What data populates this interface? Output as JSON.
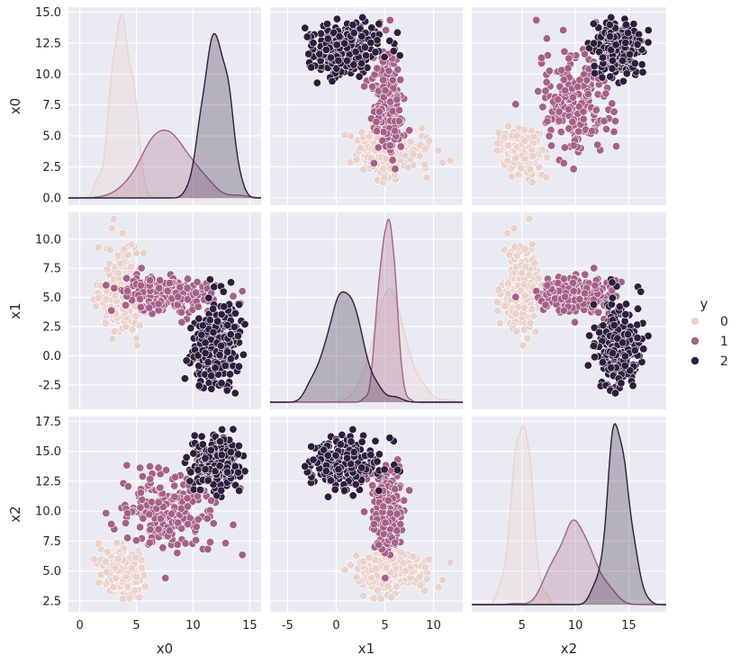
{
  "chart_data": {
    "type": "pairplot",
    "variables": [
      "x0",
      "x1",
      "x2"
    ],
    "hue": {
      "title": "y",
      "classes": [
        "0",
        "1",
        "2"
      ],
      "colors": [
        "#ebd2cc",
        "#a56088",
        "#2d1e3d"
      ]
    },
    "clusters": {
      "0": {
        "n": 260,
        "mean": [
          3.8,
          5.6,
          5.0
        ],
        "sd": [
          0.9,
          1.9,
          0.9
        ]
      },
      "1": {
        "n": 220,
        "mean": [
          8.0,
          5.2,
          10.0
        ],
        "sd": [
          2.1,
          0.8,
          1.7
        ]
      },
      "2": {
        "n": 280,
        "mean": [
          12.0,
          1.0,
          14.0
        ],
        "sd": [
          1.0,
          1.9,
          1.0
        ]
      }
    },
    "axes": {
      "x0": {
        "label": "x0",
        "range": [
          -1,
          16
        ],
        "ticks": [
          "0",
          "5",
          "10",
          "15"
        ]
      },
      "x1": {
        "label": "x1",
        "range": [
          -6.8,
          13
        ],
        "ticks": [
          "-5",
          "0",
          "5",
          "10"
        ]
      },
      "x2": {
        "label": "x2",
        "range": [
          0.3,
          18.5
        ],
        "ticks": [
          "5",
          "10",
          "15"
        ]
      }
    },
    "y_axes": {
      "x0": {
        "label": "x0",
        "range": [
          -0.6,
          15.4
        ],
        "ticks": [
          "0.0",
          "2.5",
          "5.0",
          "7.5",
          "10.0",
          "12.5",
          "15.0"
        ]
      },
      "x1": {
        "label": "x1",
        "range": [
          -4.6,
          12.3
        ],
        "ticks": [
          "-2.5",
          "0.0",
          "2.5",
          "5.0",
          "7.5",
          "10.0"
        ]
      },
      "x2": {
        "label": "x2",
        "range": [
          1.6,
          17.9
        ],
        "ticks": [
          "2.5",
          "5.0",
          "7.5",
          "10.0",
          "12.5",
          "15.0",
          "17.5"
        ]
      }
    },
    "diagonal": "kde",
    "off_diagonal": "scatter",
    "grid": true,
    "legend_position": "right"
  }
}
